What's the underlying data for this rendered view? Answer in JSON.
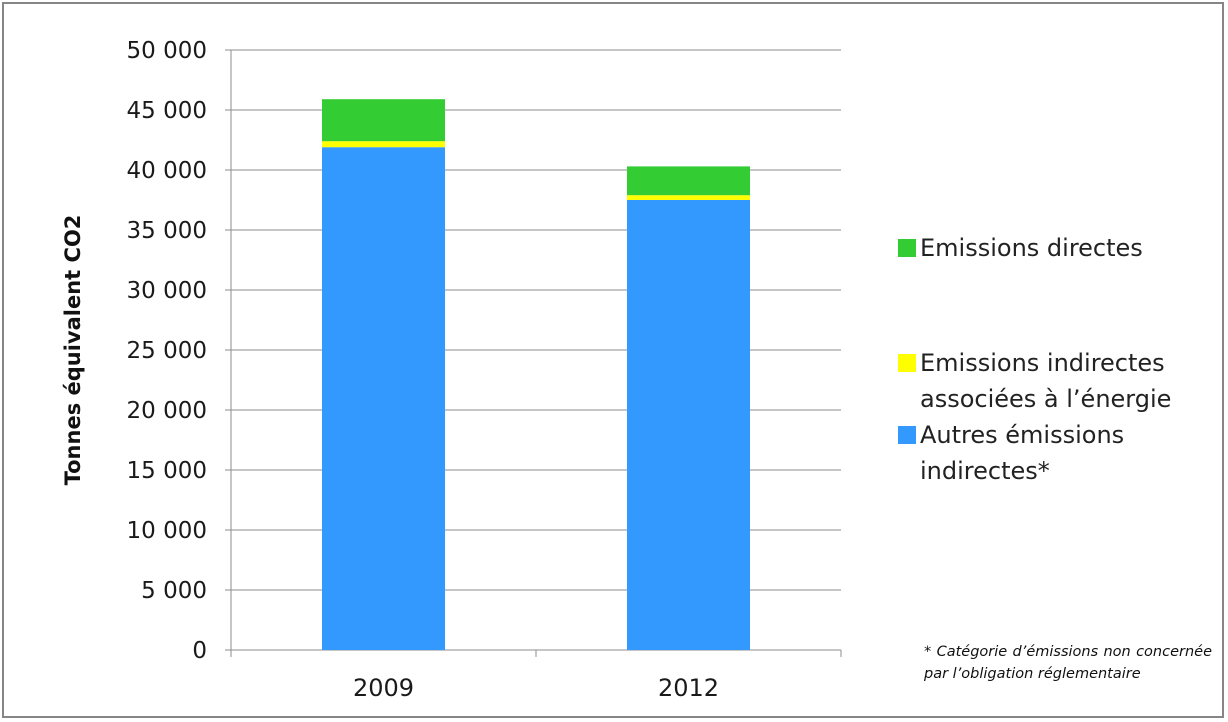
{
  "chart_data": {
    "type": "bar",
    "stacked": true,
    "categories": [
      "2009",
      "2012"
    ],
    "series": [
      {
        "name": "Autres émissions indirectes*",
        "color": "#3399FF",
        "values": [
          41900,
          37500
        ]
      },
      {
        "name": "Emissions indirectes associées à l’énergie",
        "color": "#FFFF00",
        "values": [
          500,
          400
        ]
      },
      {
        "name": "Emissions directes",
        "color": "#33CC33",
        "values": [
          3500,
          2400
        ]
      }
    ],
    "ylabel": "Tonnes équivalent CO2",
    "ylim": [
      0,
      50000
    ],
    "yticks": [
      0,
      5000,
      10000,
      15000,
      20000,
      25000,
      30000,
      35000,
      40000,
      45000,
      50000
    ],
    "ytick_labels": [
      "0",
      "5 000",
      "10 000",
      "15 000",
      "20 000",
      "25 000",
      "30 000",
      "35 000",
      "40 000",
      "45 000",
      "50 000"
    ],
    "grid": true,
    "legend_position": "right",
    "legend": [
      {
        "color": "#33CC33",
        "lines": [
          "Emissions directes"
        ]
      },
      {
        "color": "#FFFF00",
        "lines": [
          "Emissions indirectes",
          "associées à l’énergie"
        ]
      },
      {
        "color": "#3399FF",
        "lines": [
          "Autres émissions",
          "indirectes*"
        ]
      }
    ]
  },
  "footnote": "* Catégorie d’émissions non concernée par l’obligation réglementaire"
}
